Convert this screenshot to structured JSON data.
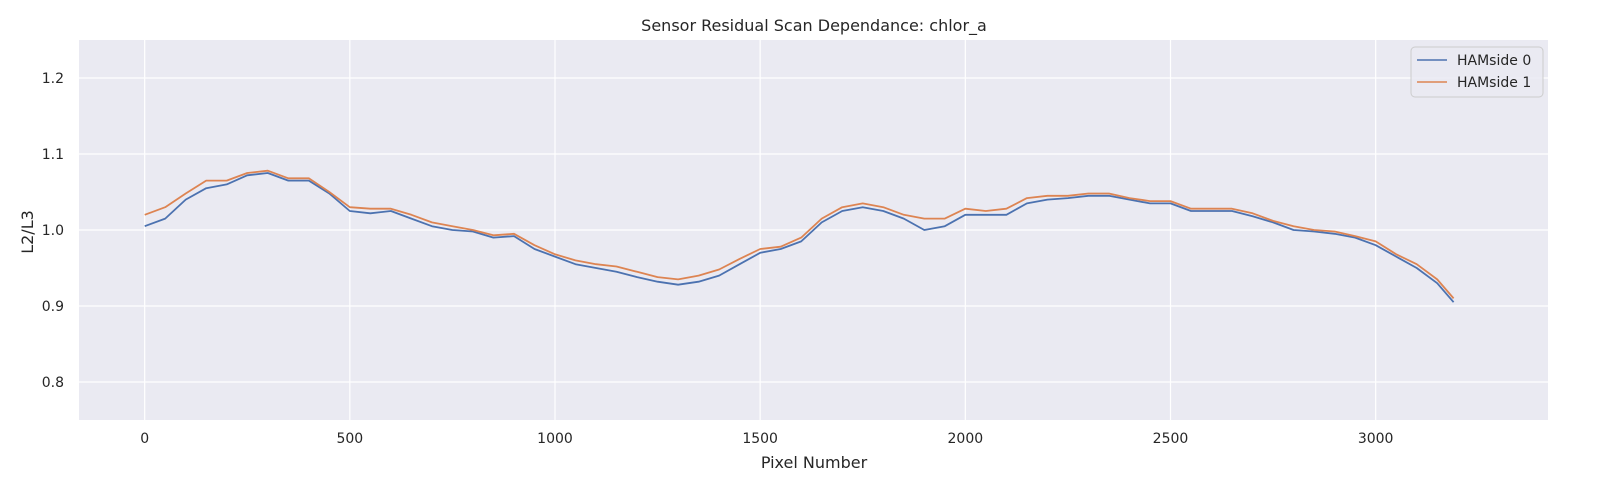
{
  "chart_data": {
    "type": "line",
    "title": "Sensor Residual Scan Dependance: chlor_a",
    "xlabel": "Pixel Number",
    "ylabel": "L2/L3",
    "xlim": [
      -160,
      3420
    ],
    "ylim": [
      0.75,
      1.25
    ],
    "xticks": [
      0,
      500,
      1000,
      1500,
      2000,
      2500,
      3000
    ],
    "xtick_labels": [
      "0",
      "500",
      "1000",
      "1500",
      "2000",
      "2500",
      "3000"
    ],
    "yticks": [
      0.8,
      0.9,
      1.0,
      1.1,
      1.2
    ],
    "ytick_labels": [
      "0.8",
      "0.9",
      "1.0",
      "1.1",
      "1.2"
    ],
    "grid": true,
    "legend_position": "top-right",
    "x": [
      0,
      50,
      100,
      150,
      200,
      250,
      300,
      350,
      400,
      450,
      500,
      550,
      600,
      650,
      700,
      750,
      800,
      850,
      900,
      950,
      1000,
      1050,
      1100,
      1150,
      1200,
      1250,
      1300,
      1350,
      1400,
      1450,
      1500,
      1550,
      1600,
      1650,
      1700,
      1750,
      1800,
      1850,
      1900,
      1950,
      2000,
      2050,
      2100,
      2150,
      2200,
      2250,
      2300,
      2350,
      2400,
      2450,
      2500,
      2550,
      2600,
      2650,
      2700,
      2750,
      2800,
      2850,
      2900,
      2950,
      3000,
      3050,
      3100,
      3150,
      3190
    ],
    "series": [
      {
        "name": "HAMside 0",
        "color": "#4c72b0",
        "values": [
          1.005,
          1.015,
          1.04,
          1.055,
          1.06,
          1.072,
          1.075,
          1.065,
          1.065,
          1.048,
          1.025,
          1.022,
          1.025,
          1.015,
          1.005,
          1.0,
          0.998,
          0.99,
          0.992,
          0.975,
          0.965,
          0.955,
          0.95,
          0.945,
          0.938,
          0.932,
          0.928,
          0.932,
          0.94,
          0.955,
          0.97,
          0.975,
          0.985,
          1.01,
          1.025,
          1.03,
          1.025,
          1.015,
          1.0,
          1.005,
          1.02,
          1.02,
          1.02,
          1.035,
          1.04,
          1.042,
          1.045,
          1.045,
          1.04,
          1.035,
          1.035,
          1.025,
          1.025,
          1.025,
          1.018,
          1.01,
          1.0,
          0.998,
          0.995,
          0.99,
          0.98,
          0.965,
          0.95,
          0.93,
          0.905
        ]
      },
      {
        "name": "HAMside 1",
        "color": "#dd8452",
        "values": [
          1.02,
          1.03,
          1.048,
          1.065,
          1.065,
          1.075,
          1.078,
          1.068,
          1.068,
          1.05,
          1.03,
          1.028,
          1.028,
          1.02,
          1.01,
          1.005,
          1.0,
          0.993,
          0.995,
          0.98,
          0.968,
          0.96,
          0.955,
          0.952,
          0.945,
          0.938,
          0.935,
          0.94,
          0.948,
          0.962,
          0.975,
          0.978,
          0.99,
          1.015,
          1.03,
          1.035,
          1.03,
          1.02,
          1.015,
          1.015,
          1.028,
          1.025,
          1.028,
          1.042,
          1.045,
          1.045,
          1.048,
          1.048,
          1.042,
          1.038,
          1.038,
          1.028,
          1.028,
          1.028,
          1.022,
          1.012,
          1.005,
          1.0,
          0.998,
          0.992,
          0.985,
          0.968,
          0.955,
          0.935,
          0.91
        ]
      }
    ]
  }
}
